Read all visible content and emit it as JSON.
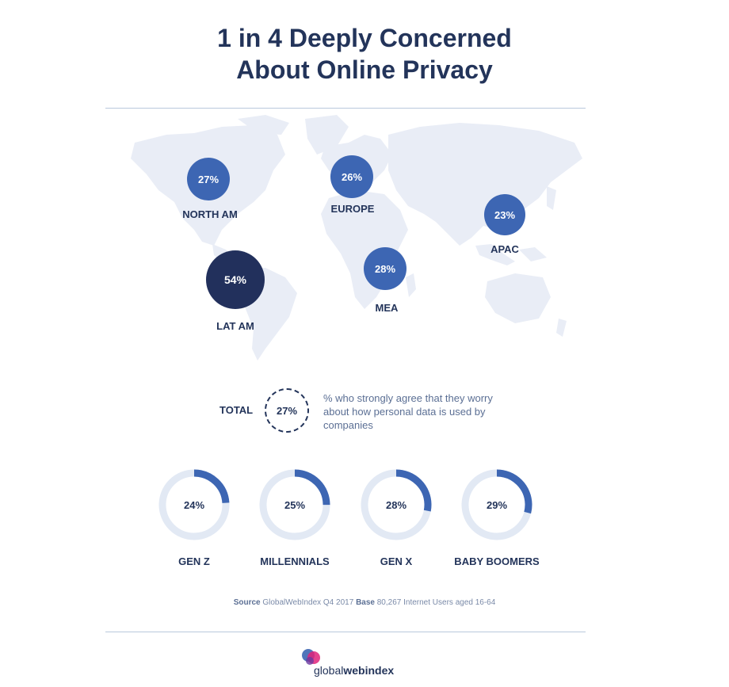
{
  "header": {
    "title_line1": "1 in 4 Deeply Concerned",
    "title_line2": "About Online Privacy"
  },
  "colors": {
    "bubble": "#3d66b3",
    "highlight_bubble": "#22305c",
    "map_land": "#e9edf6",
    "donut_track": "#e2e9f4",
    "donut_fill": "#3d66b3",
    "text_dark": "#23345a"
  },
  "chart_data": [
    {
      "type": "bubble-map",
      "regions": [
        {
          "name": "NORTH AM",
          "value": 27,
          "label": "27%"
        },
        {
          "name": "EUROPE",
          "value": 26,
          "label": "26%"
        },
        {
          "name": "APAC",
          "value": 23,
          "label": "23%"
        },
        {
          "name": "LAT AM",
          "value": 54,
          "label": "54%"
        },
        {
          "name": "MEA",
          "value": 28,
          "label": "28%"
        }
      ]
    },
    {
      "type": "donut",
      "total": {
        "label": "TOTAL",
        "value": 27,
        "display": "27%"
      },
      "description": "% who strongly agree that they worry about how personal data is used by companies",
      "categories": [
        {
          "name": "GEN Z",
          "value": 24,
          "display": "24%"
        },
        {
          "name": "MILLENNIALS",
          "value": 25,
          "display": "25%"
        },
        {
          "name": "GEN X",
          "value": 28,
          "display": "28%"
        },
        {
          "name": "BABY BOOMERS",
          "value": 29,
          "display": "29%"
        }
      ]
    }
  ],
  "footer": {
    "source_label": "Source",
    "source_text": "GlobalWebIndex Q4 2017",
    "base_label": "Base",
    "base_text": "80,267 Internet Users aged 16-64",
    "logo_light": "global",
    "logo_bold": "webindex"
  }
}
